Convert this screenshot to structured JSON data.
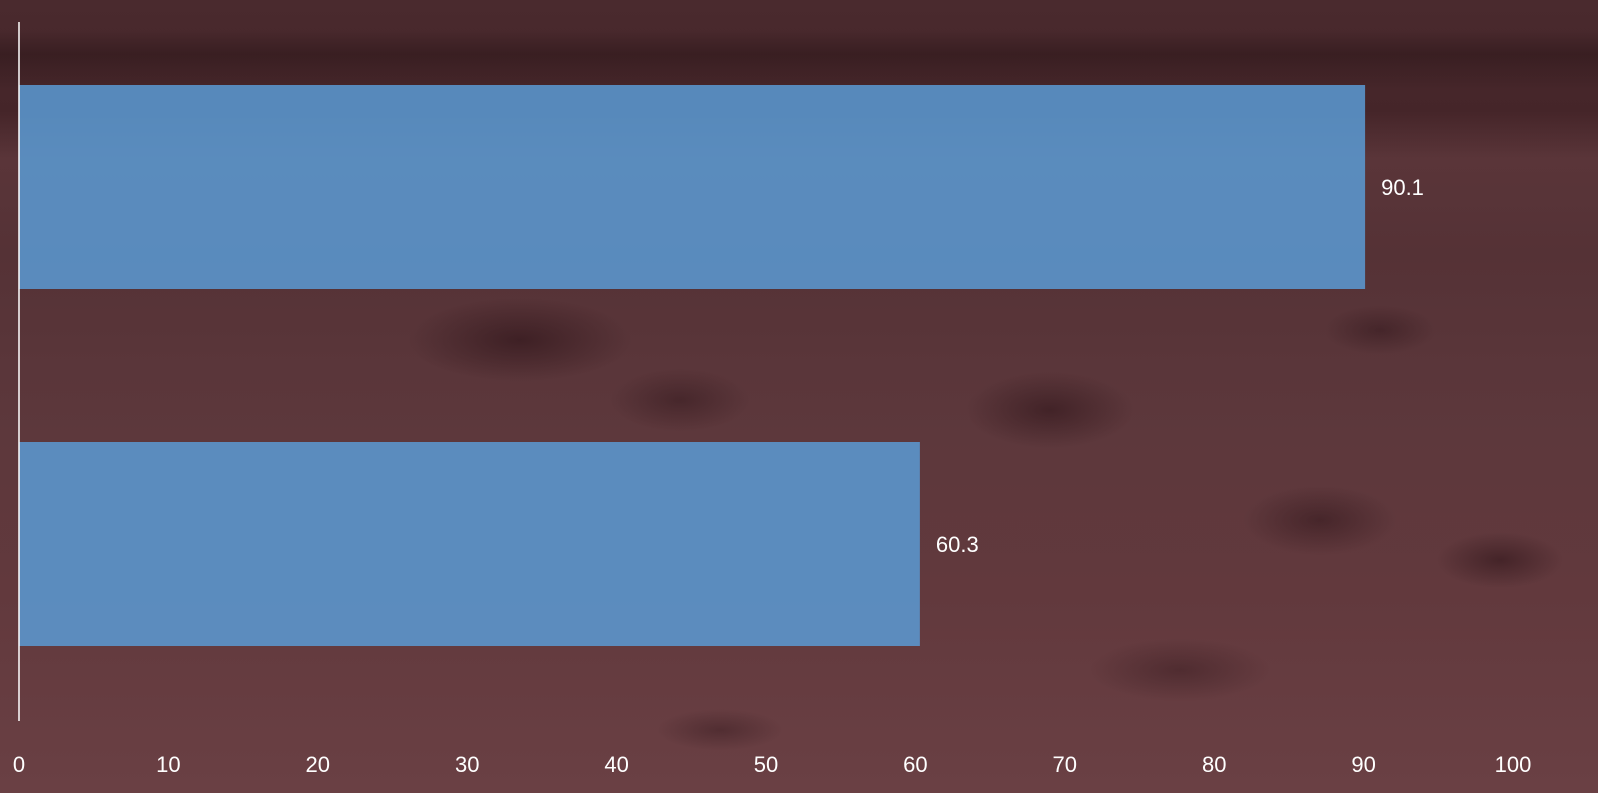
{
  "chart_data": {
    "type": "bar",
    "orientation": "horizontal",
    "categories": [
      "",
      ""
    ],
    "values": [
      90.1,
      60.3
    ],
    "data_labels": [
      "90.1",
      "60.3"
    ],
    "xlim": [
      0,
      100
    ],
    "x_ticks": [
      0,
      10,
      20,
      30,
      40,
      50,
      60,
      70,
      80,
      90,
      100
    ],
    "x_tick_labels": [
      "0",
      "10",
      "20",
      "30",
      "40",
      "50",
      "60",
      "70",
      "80",
      "90",
      "100"
    ],
    "grid": false,
    "bar_color": "#5b9bd5",
    "bar_opacity": 0.85,
    "axis_color": "#ffffff",
    "label_color": "#ffffff",
    "background": "photo of rocky shoreline with tinted maroon overlay"
  }
}
